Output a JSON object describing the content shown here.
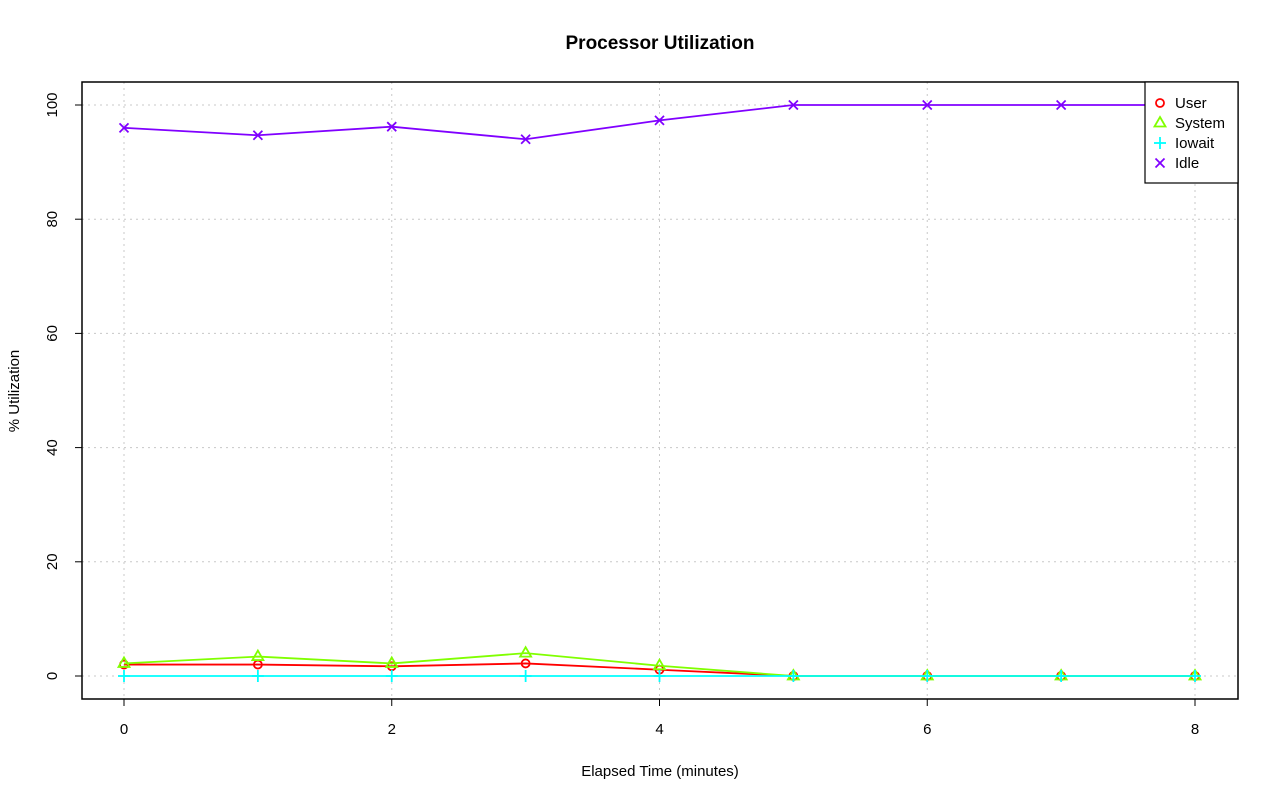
{
  "chart_data": {
    "type": "line",
    "title": "Processor Utilization",
    "xlabel": "Elapsed Time (minutes)",
    "ylabel": "% Utilization",
    "xlim": [
      -0.3,
      8.3
    ],
    "ylim": [
      -4,
      104
    ],
    "xticks": [
      0,
      2,
      4,
      6,
      8
    ],
    "yticks": [
      0,
      20,
      40,
      60,
      80,
      100
    ],
    "grid": true,
    "legend_position": "top-right",
    "x": [
      0,
      1,
      2,
      3,
      4,
      5,
      6,
      7,
      8
    ],
    "series": [
      {
        "name": "User",
        "color": "#ff0000",
        "marker": "circle",
        "values": [
          2.0,
          2.0,
          1.7,
          2.2,
          1.1,
          0,
          0,
          0,
          0
        ]
      },
      {
        "name": "System",
        "color": "#80ff00",
        "marker": "triangle",
        "values": [
          2.2,
          3.4,
          2.2,
          4.0,
          1.8,
          0,
          0,
          0,
          0
        ]
      },
      {
        "name": "Iowait",
        "color": "#00ffff",
        "marker": "plus",
        "values": [
          0,
          0,
          0,
          0,
          0,
          0,
          0,
          0,
          0
        ]
      },
      {
        "name": "Idle",
        "color": "#8000ff",
        "marker": "cross",
        "values": [
          96.0,
          94.7,
          96.2,
          94.0,
          97.3,
          100,
          100,
          100,
          100
        ]
      }
    ]
  }
}
